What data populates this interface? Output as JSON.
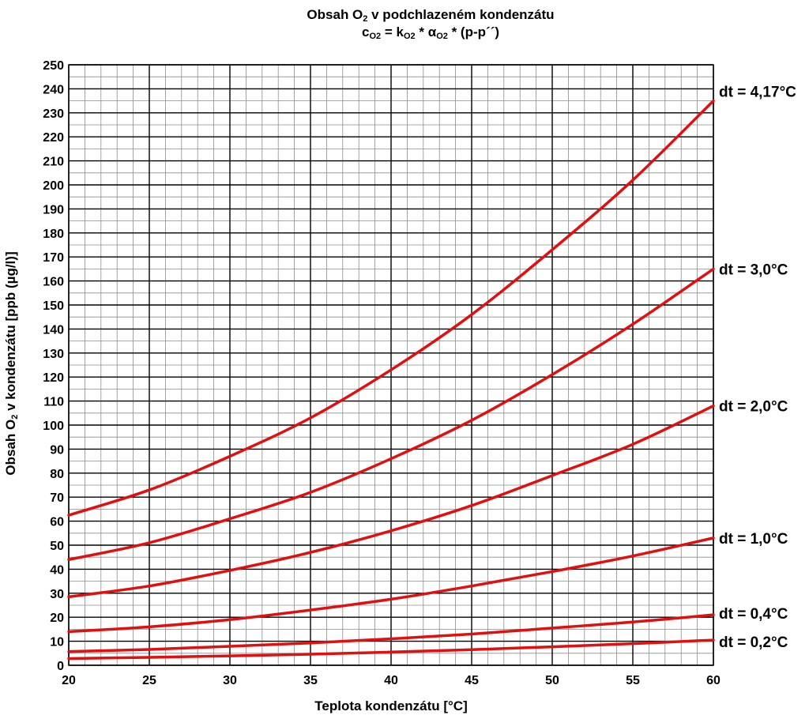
{
  "title": {
    "line1_pre": "Obsah O",
    "line1_sub": "2",
    "line1_post": " v podchlazeném kondenzátu",
    "line2": {
      "c": "c",
      "c_sub": "O2",
      "eq": " = k",
      "k_sub": "O2",
      "mid": " * α",
      "a_sub": "O2",
      "post": " * (p-p´´)"
    }
  },
  "chart_data": {
    "type": "line",
    "xlabel": "Teplota kondenzátu [°C]",
    "ylabel": {
      "pre": "Obsah O",
      "sub": "2",
      "post": " v kondenzátu [ppb (µg/l)]"
    },
    "xlim": [
      20,
      60
    ],
    "ylim": [
      0,
      250
    ],
    "x_ticks": [
      20,
      25,
      30,
      35,
      40,
      45,
      50,
      55,
      60
    ],
    "y_ticks": [
      0,
      10,
      20,
      30,
      40,
      50,
      60,
      70,
      80,
      90,
      100,
      110,
      120,
      130,
      140,
      150,
      160,
      170,
      180,
      190,
      200,
      210,
      220,
      230,
      240,
      250
    ],
    "grid": true,
    "legend": "labels at right end of each line",
    "line_color": "#e01010",
    "x": [
      20,
      25,
      30,
      35,
      40,
      45,
      50,
      55,
      60
    ],
    "series": [
      {
        "name": "dt = 4,17°C",
        "values": [
          62.5,
          73,
          87,
          103,
          123,
          146,
          173,
          202,
          235
        ]
      },
      {
        "name": "dt = 3,0°C",
        "values": [
          44,
          51,
          61,
          72,
          86,
          102,
          121,
          142,
          165
        ]
      },
      {
        "name": "dt = 2,0°C",
        "values": [
          28.5,
          33,
          39.5,
          47,
          56,
          66.5,
          79,
          92,
          108
        ]
      },
      {
        "name": "dt = 1,0°C",
        "values": [
          14,
          16,
          19,
          23,
          27.5,
          33,
          39,
          45.5,
          53
        ]
      },
      {
        "name": "dt = 0,4°C",
        "values": [
          5.7,
          6.6,
          7.9,
          9.3,
          11,
          13,
          15.5,
          18,
          21
        ]
      },
      {
        "name": "dt = 0,2°C",
        "values": [
          2.8,
          3.3,
          3.9,
          4.6,
          5.5,
          6.5,
          7.7,
          9,
          10.5
        ]
      }
    ]
  }
}
